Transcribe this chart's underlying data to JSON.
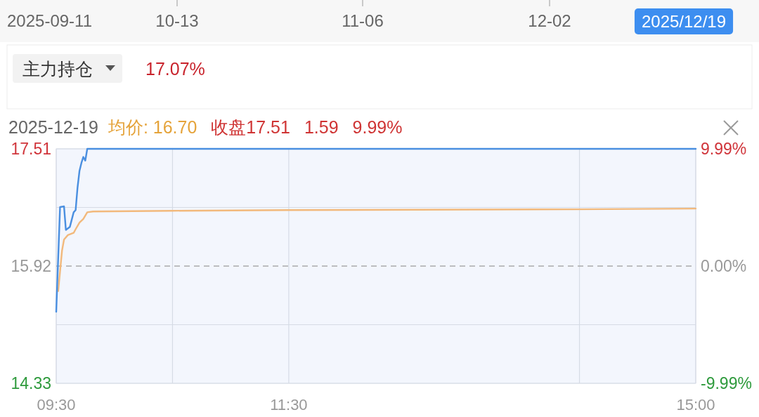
{
  "chart_data": [
    {
      "type": "other",
      "annotations": [
        "2025-09-11",
        "10-13",
        "11-06",
        "12-02",
        "2025/12/19",
        "主力持仓",
        "17.07%"
      ]
    },
    {
      "type": "line",
      "title": "2025-12-19",
      "annotations": [
        "均价: 16.70",
        "收盘17.51",
        "1.59",
        "9.99%"
      ],
      "series": [
        {
          "color": "#4a8fe0",
          "x": [
            9.5,
            9.533,
            9.567,
            9.583,
            9.617,
            9.65,
            9.667,
            9.683,
            9.7,
            9.717,
            9.733,
            9.75,
            9.767,
            15
          ],
          "values": [
            15.3,
            16.72,
            16.73,
            16.41,
            16.45,
            16.65,
            16.68,
            16.98,
            17.21,
            17.32,
            17.4,
            17.35,
            17.51,
            17.51
          ]
        },
        {
          "color": "#f2b97c",
          "x": [
            9.517,
            9.55,
            9.567,
            9.6,
            9.65,
            9.667,
            9.7,
            9.733,
            9.767,
            9.817,
            10.5,
            11.5,
            14,
            15
          ],
          "values": [
            15.58,
            16.13,
            16.28,
            16.34,
            16.37,
            16.42,
            16.51,
            16.56,
            16.65,
            16.66,
            16.67,
            16.68,
            16.69,
            16.7
          ]
        }
      ],
      "xlim": [
        9.5,
        15
      ],
      "xticks": [
        {
          "value": 9.5,
          "label": "09:30"
        },
        {
          "value": 10.5,
          "label": null
        },
        {
          "value": 11.5,
          "label": "11:30"
        },
        {
          "value": 14,
          "label": null
        },
        {
          "value": 15,
          "label": "15:00"
        }
      ],
      "ylim": [
        14.33,
        17.51
      ],
      "yticks": [
        14.33,
        {
          "value": 15.125,
          "label": null
        },
        15.92,
        {
          "value": 16.715,
          "label": null
        },
        17.51
      ],
      "y2lim": [
        -9.99,
        9.99
      ],
      "y2ticks": [
        {
          "value": -9.99,
          "label": "-9.99%"
        },
        {
          "value": 0,
          "label": "0.00%"
        },
        {
          "value": 9.99,
          "label": "9.99%"
        }
      ],
      "ref_lines": [
        {
          "axis": "y",
          "value": 15.92,
          "line_style": "dashed",
          "color": "#aaaaaa"
        }
      ],
      "grid": true
    }
  ]
}
